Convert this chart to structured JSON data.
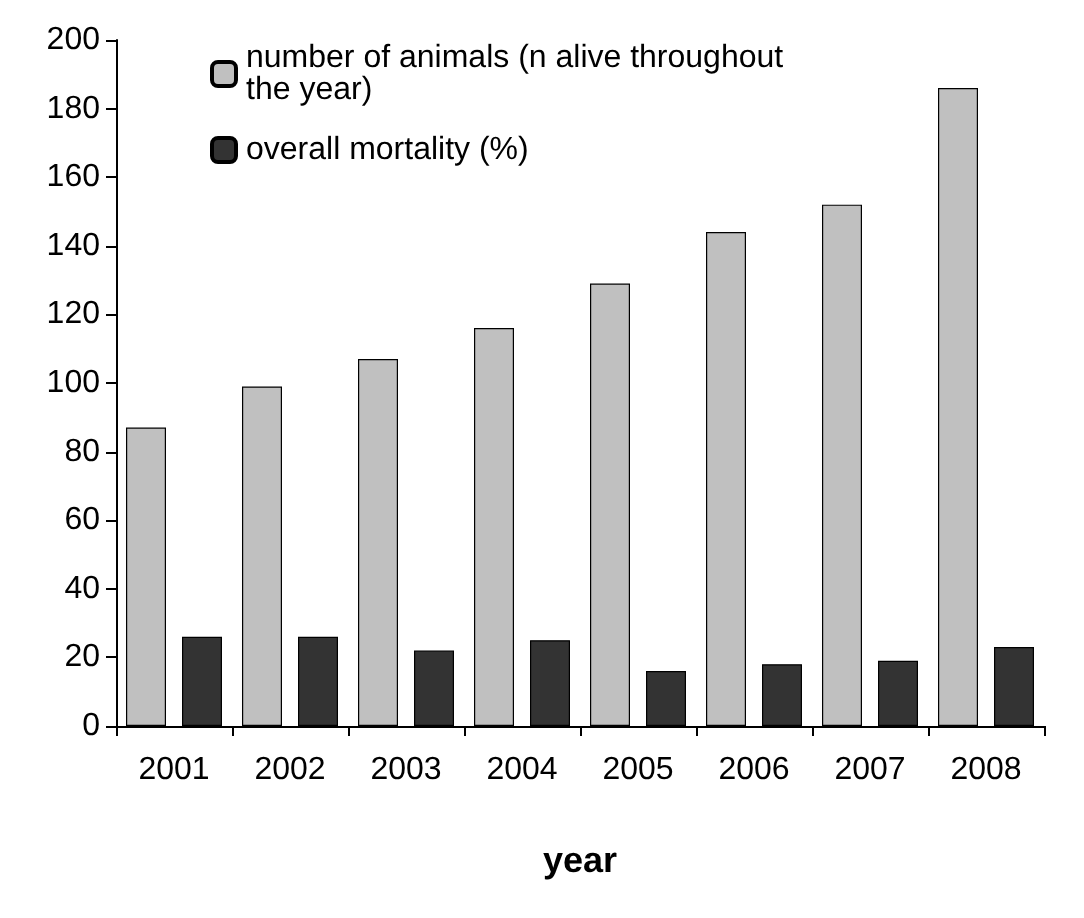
{
  "chart_data": {
    "type": "bar",
    "xlabel": "year",
    "categories": [
      "2001",
      "2002",
      "2003",
      "2004",
      "2005",
      "2006",
      "2007",
      "2008"
    ],
    "series": [
      {
        "name": "number of animals (n alive throughout the year)",
        "color": "#c0c0c0",
        "values": [
          87,
          99,
          107,
          116,
          129,
          144,
          152,
          186
        ]
      },
      {
        "name": "overall mortality (%)",
        "color": "#333333",
        "values": [
          26,
          26,
          22,
          25,
          16,
          18,
          19,
          23
        ]
      }
    ],
    "ylim": [
      0,
      200
    ],
    "yticks": [
      0,
      20,
      40,
      60,
      80,
      100,
      120,
      140,
      160,
      180,
      200
    ],
    "grid": false,
    "legend": "top"
  }
}
